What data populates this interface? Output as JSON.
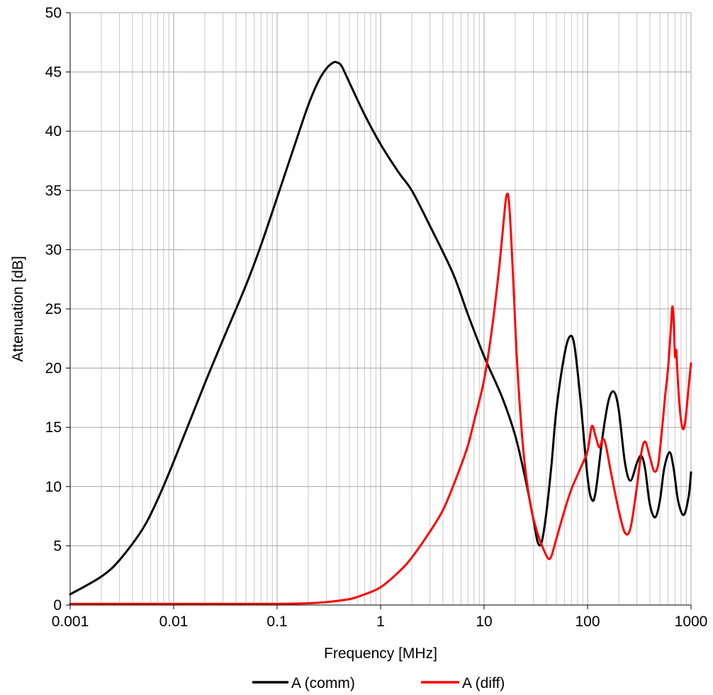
{
  "chart_data": {
    "type": "line",
    "title": "",
    "xlabel": "Frequency [MHz]",
    "ylabel": "Attenuation [dB]",
    "xscale": "log",
    "xlim": [
      0.001,
      1000
    ],
    "ylim": [
      0,
      50
    ],
    "xticks": [
      0.001,
      0.01,
      0.1,
      1,
      10,
      100,
      1000
    ],
    "xtick_labels": [
      "0.001",
      "0.01",
      "0.1",
      "1",
      "10",
      "100",
      "1000"
    ],
    "yticks": [
      0,
      5,
      10,
      15,
      20,
      25,
      30,
      35,
      40,
      45,
      50
    ],
    "ytick_labels": [
      "0",
      "5",
      "10",
      "15",
      "20",
      "25",
      "30",
      "35",
      "40",
      "45",
      "50"
    ],
    "grid": true,
    "legend_position": "bottom",
    "series": [
      {
        "name": "A (comm)",
        "color": "#000000",
        "x": [
          0.001,
          0.002,
          0.003,
          0.005,
          0.007,
          0.01,
          0.02,
          0.03,
          0.05,
          0.07,
          0.1,
          0.15,
          0.2,
          0.25,
          0.3,
          0.35,
          0.38,
          0.42,
          0.5,
          0.7,
          1,
          1.5,
          2,
          3,
          5,
          7,
          10,
          15,
          20,
          25,
          30,
          33,
          36,
          40,
          45,
          50,
          60,
          68,
          75,
          85,
          100,
          110,
          120,
          140,
          160,
          180,
          200,
          230,
          260,
          300,
          330,
          360,
          400,
          450,
          500,
          550,
          620,
          680,
          750,
          850,
          950,
          1000
        ],
        "y": [
          0.9,
          2.4,
          3.8,
          6.4,
          8.9,
          12.1,
          18.7,
          22.4,
          27.0,
          30.4,
          34.4,
          39.0,
          42.2,
          44.2,
          45.3,
          45.8,
          45.8,
          45.5,
          44.1,
          41.4,
          38.9,
          36.5,
          35.0,
          32.0,
          28.0,
          24.5,
          21.0,
          17.5,
          14.3,
          10.7,
          7.2,
          5.3,
          5.3,
          7.8,
          12.0,
          16.5,
          21.2,
          22.7,
          21.8,
          17.5,
          10.8,
          8.9,
          9.6,
          14.3,
          17.3,
          18.0,
          16.5,
          12.0,
          10.5,
          12.0,
          12.6,
          11.5,
          8.5,
          7.4,
          8.8,
          11.5,
          12.9,
          11.5,
          8.8,
          7.6,
          9.2,
          11.2
        ]
      },
      {
        "name": "A (diff)",
        "color": "#ff0000",
        "x": [
          0.001,
          0.01,
          0.05,
          0.1,
          0.2,
          0.3,
          0.5,
          0.7,
          1,
          1.5,
          2,
          3,
          4,
          5,
          6,
          7,
          8,
          10,
          12,
          14,
          15.5,
          16.5,
          17.5,
          19,
          21,
          24,
          28,
          33,
          38,
          42,
          45,
          50,
          60,
          70,
          85,
          100,
          110,
          120,
          130,
          140,
          150,
          170,
          200,
          230,
          260,
          300,
          330,
          360,
          400,
          440,
          480,
          520,
          560,
          600,
          640,
          660,
          680,
          700,
          720,
          740,
          780,
          830,
          880,
          950,
          1000
        ],
        "y": [
          0.1,
          0.1,
          0.1,
          0.1,
          0.15,
          0.25,
          0.5,
          0.9,
          1.5,
          2.8,
          4.0,
          6.2,
          8.0,
          10.0,
          11.8,
          13.5,
          15.5,
          19.0,
          23.5,
          28.5,
          32.5,
          34.6,
          33.8,
          28.0,
          20.0,
          13.0,
          8.5,
          6.0,
          4.6,
          3.9,
          4.2,
          5.6,
          8.0,
          9.8,
          11.5,
          13.0,
          15.1,
          14.2,
          13.3,
          14.0,
          13.5,
          11.0,
          8.0,
          6.1,
          6.5,
          10.0,
          12.8,
          13.8,
          12.5,
          11.3,
          11.8,
          14.5,
          17.5,
          20.0,
          23.5,
          25.2,
          24.0,
          21.0,
          21.5,
          19.5,
          16.5,
          14.9,
          15.5,
          18.5,
          20.4
        ]
      }
    ]
  }
}
